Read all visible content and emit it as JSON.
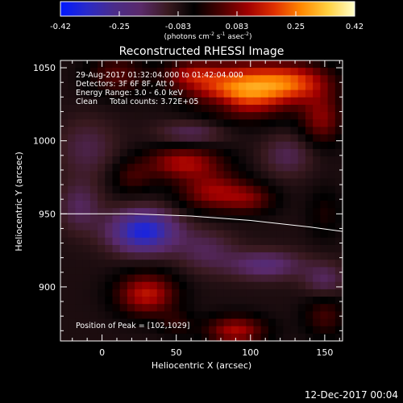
{
  "colorbar": {
    "ticks": [
      "-0.42",
      "-0.25",
      "-0.083",
      "0.083",
      "0.25",
      "0.42"
    ],
    "unit_parts": {
      "a": "(photons cm",
      "a_sup": "-2",
      "b": " s",
      "b_sup": "-1",
      "c": " asec",
      "c_sup": "-2",
      "d": ")"
    },
    "colors": [
      "#0018ff",
      "#2a2ac8",
      "#4a2c8a",
      "#5a2a6a",
      "#3a1a20",
      "#000000",
      "#4a0000",
      "#a00000",
      "#e03000",
      "#ff8800",
      "#ffd040",
      "#ffffc8"
    ]
  },
  "chart_data": {
    "type": "heatmap",
    "title": "Reconstructed RHESSI Image",
    "xlabel": "Heliocentric X (arcsec)",
    "ylabel": "Heliocentric Y (arcsec)",
    "xlim": [
      -28,
      162
    ],
    "ylim": [
      863,
      1055
    ],
    "xticks": [
      0,
      50,
      100,
      150
    ],
    "yticks": [
      900,
      950,
      1000,
      1050
    ],
    "zlim": [
      -0.42,
      0.42
    ],
    "annotations": [
      "29-Aug-2017 01:32:04.000 to 01:42:04.000",
      "Detectors: 3F 6F 8F, Att 0",
      "Energy Range: 3.0 - 6.0 keV",
      "Clean     Total counts: 3.72E+05"
    ],
    "peak_label": "Position of Peak = [102,1029]",
    "limb": [
      [
        -28,
        950
      ],
      [
        20,
        950
      ],
      [
        60,
        948.5
      ],
      [
        100,
        945.5
      ],
      [
        140,
        941
      ],
      [
        162,
        938
      ]
    ],
    "sources": [
      {
        "x": 95,
        "y": 1035,
        "sx": 22,
        "sy": 12,
        "amp": 0.34
      },
      {
        "x": 130,
        "y": 1040,
        "sx": 18,
        "sy": 9,
        "amp": 0.22
      },
      {
        "x": 60,
        "y": 1045,
        "sx": 14,
        "sy": 7,
        "amp": 0.16
      },
      {
        "x": 148,
        "y": 1015,
        "sx": 10,
        "sy": 12,
        "amp": 0.16
      },
      {
        "x": 10,
        "y": 1045,
        "sx": 14,
        "sy": 10,
        "amp": 0.12
      },
      {
        "x": 55,
        "y": 985,
        "sx": 18,
        "sy": 8,
        "amp": 0.2
      },
      {
        "x": 75,
        "y": 965,
        "sx": 16,
        "sy": 9,
        "amp": 0.18
      },
      {
        "x": 100,
        "y": 960,
        "sx": 12,
        "sy": 7,
        "amp": 0.12
      },
      {
        "x": 20,
        "y": 975,
        "sx": 10,
        "sy": 8,
        "amp": 0.09
      },
      {
        "x": 150,
        "y": 950,
        "sx": 8,
        "sy": 12,
        "amp": 0.06
      },
      {
        "x": 30,
        "y": 895,
        "sx": 14,
        "sy": 10,
        "amp": 0.22
      },
      {
        "x": 90,
        "y": 870,
        "sx": 14,
        "sy": 7,
        "amp": 0.2
      },
      {
        "x": 150,
        "y": 880,
        "sx": 10,
        "sy": 10,
        "amp": 0.1
      },
      {
        "x": 50,
        "y": 875,
        "sx": 8,
        "sy": 6,
        "amp": 0.07
      },
      {
        "x": 28,
        "y": 938,
        "sx": 16,
        "sy": 10,
        "amp": -0.3
      },
      {
        "x": -15,
        "y": 955,
        "sx": 10,
        "sy": 12,
        "amp": -0.1
      },
      {
        "x": 110,
        "y": 915,
        "sx": 18,
        "sy": 7,
        "amp": -0.14
      },
      {
        "x": 150,
        "y": 905,
        "sx": 10,
        "sy": 8,
        "amp": -0.1
      },
      {
        "x": 60,
        "y": 1005,
        "sx": 16,
        "sy": 6,
        "amp": -0.1
      },
      {
        "x": 125,
        "y": 990,
        "sx": 12,
        "sy": 10,
        "amp": -0.09
      },
      {
        "x": -10,
        "y": 995,
        "sx": 14,
        "sy": 14,
        "amp": -0.08
      },
      {
        "x": 70,
        "y": 925,
        "sx": 14,
        "sy": 10,
        "amp": -0.09
      },
      {
        "x": 80,
        "y": 1025,
        "sx": 10,
        "sy": 5,
        "amp": -0.06
      }
    ],
    "background": -0.075,
    "grid": false
  },
  "footer": {
    "date": "12-Dec-2017 00:04"
  }
}
